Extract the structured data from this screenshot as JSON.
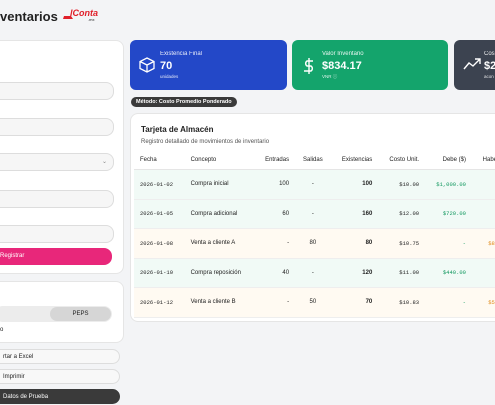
{
  "header": {
    "title": "ventarios",
    "logo": "lConta",
    "logo_suffix": ".mx"
  },
  "sidebar": {
    "button_register": "Registrar",
    "method_toggle": "PEPS",
    "note": "o",
    "actions": [
      "rtar a Excel",
      "Imprimir",
      "Datos de Prueba"
    ]
  },
  "cards": [
    {
      "label": "Existencia Final",
      "value": "70",
      "sub": "unidades"
    },
    {
      "label": "Valor Inventario",
      "value": "$834.17",
      "sub": "VNR ⓘ"
    },
    {
      "label": "Cos",
      "value": "$2",
      "sub": "acon"
    }
  ],
  "method_badge": "Método: Costo Promedio Ponderado",
  "table": {
    "title": "Tarjeta de Almacén",
    "subtitle": "Registro detallado de movimientos de inventario",
    "columns": [
      "Fecha",
      "Concepto",
      "Entradas",
      "Salidas",
      "Existencias",
      "Costo Unit.",
      "Debe ($)",
      "Haber ($)"
    ],
    "rows": [
      [
        "2026-01-02",
        "Compra inicial",
        "100",
        "-",
        "100",
        "$10.00",
        "$1,000.00",
        ""
      ],
      [
        "2026-01-05",
        "Compra adicional",
        "60",
        "-",
        "160",
        "$12.00",
        "$720.00",
        ""
      ],
      [
        "2026-01-08",
        "Venta a cliente A",
        "-",
        "80",
        "80",
        "$10.75",
        "-",
        "$860.0"
      ],
      [
        "2026-01-10",
        "Compra reposición",
        "40",
        "-",
        "120",
        "$11.00",
        "$440.00",
        ""
      ],
      [
        "2026-01-12",
        "Venta a cliente B",
        "-",
        "50",
        "70",
        "$10.83",
        "-",
        "$541.6"
      ]
    ]
  }
}
